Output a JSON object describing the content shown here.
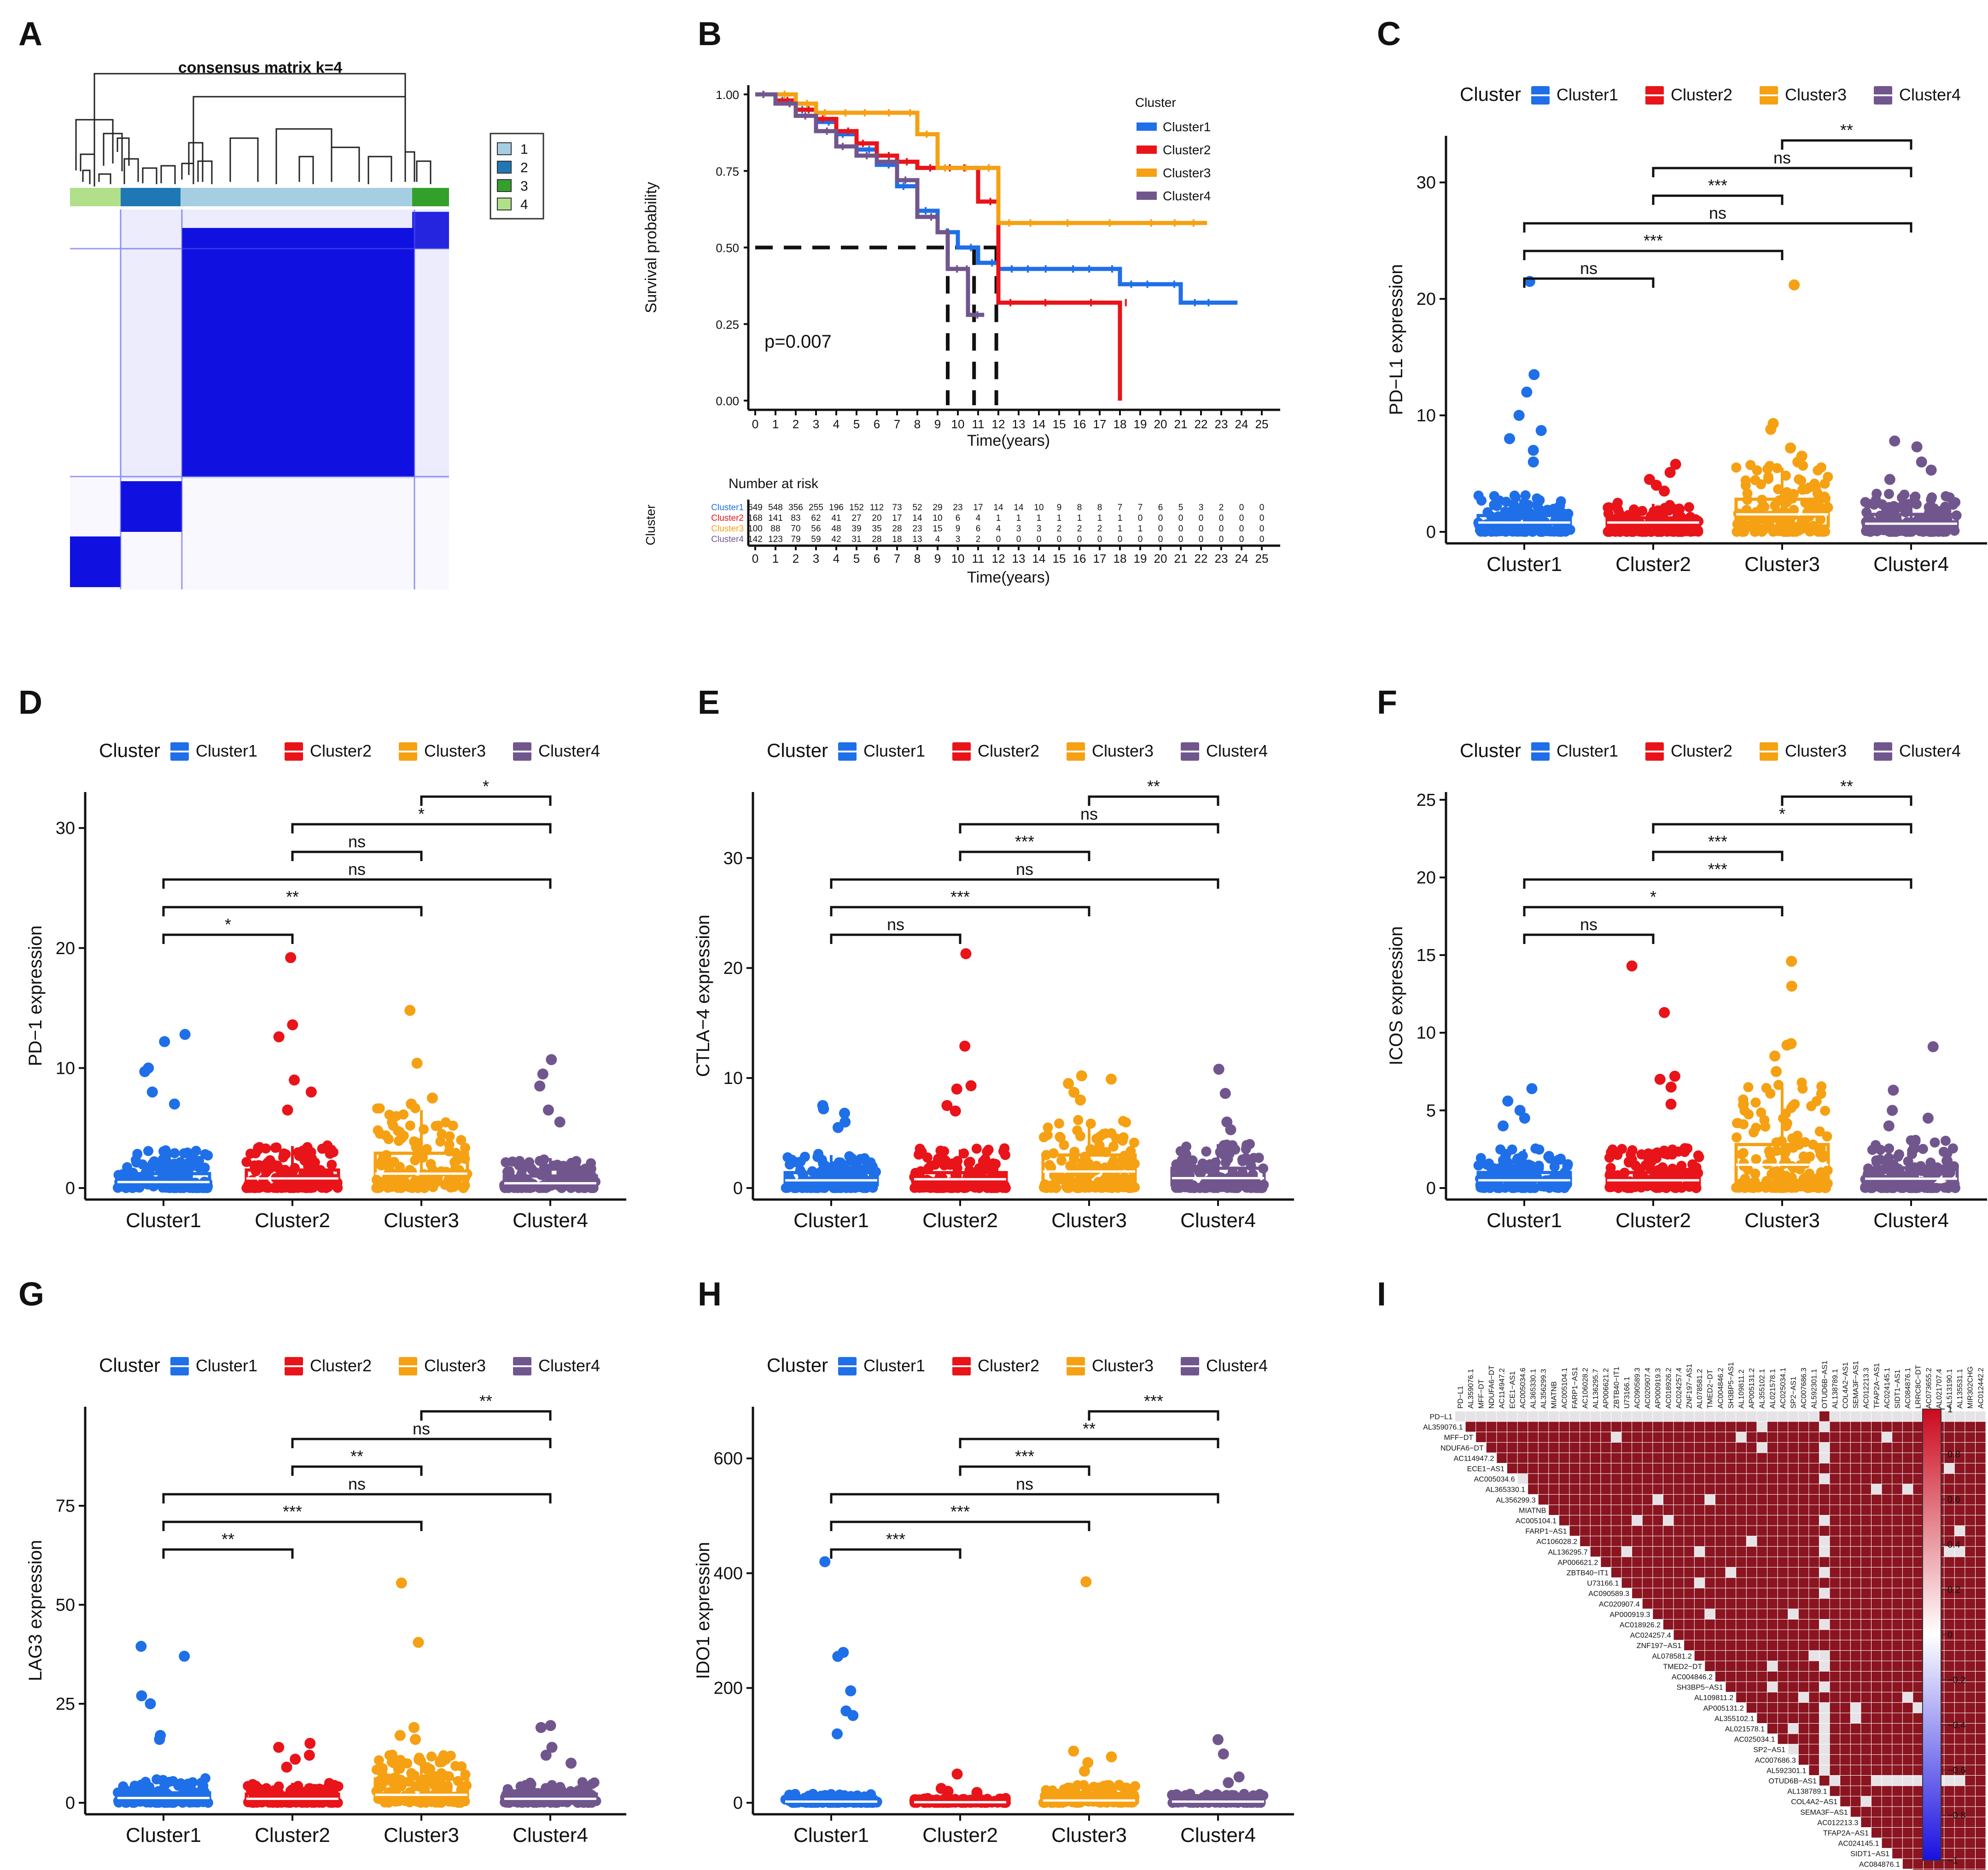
{
  "palette": {
    "Cluster1": "#1f6fe8",
    "Cluster2": "#e8141a",
    "Cluster3": "#f5a113",
    "Cluster4": "#71568e"
  },
  "panels": {
    "A": {
      "label": "A",
      "title": "consensus matrix k=4",
      "legend": [
        "1",
        "2",
        "3",
        "4"
      ],
      "legend_colors": [
        "#a6cee3",
        "#1f78b4",
        "#33a02c",
        "#b2df8a"
      ],
      "block_fill": "#1010e0"
    },
    "B": {
      "label": "B"
    },
    "C": {
      "label": "C"
    },
    "D": {
      "label": "D"
    },
    "E": {
      "label": "E"
    },
    "F": {
      "label": "F"
    },
    "G": {
      "label": "G"
    },
    "H": {
      "label": "H"
    },
    "I": {
      "label": "I"
    }
  },
  "chart_data": [
    {
      "panel": "B",
      "type": "line",
      "title": "",
      "xlabel": "Time(years)",
      "ylabel": "Survival probability",
      "xlim": [
        0,
        25
      ],
      "ylim": [
        0,
        1
      ],
      "yticks": [
        "0.00",
        "0.25",
        "0.50",
        "0.75",
        "1.00"
      ],
      "xticks": [
        "0",
        "1",
        "2",
        "3",
        "4",
        "5",
        "6",
        "7",
        "8",
        "9",
        "10",
        "11",
        "12",
        "13",
        "14",
        "15",
        "16",
        "17",
        "18",
        "19",
        "20",
        "21",
        "22",
        "23",
        "24",
        "25"
      ],
      "annotation": "p=0.007",
      "legend_title": "Cluster",
      "median_line": 0.5,
      "median_times": [
        9.5,
        10.8,
        11.9
      ],
      "series": [
        {
          "name": "Cluster1",
          "color": "#1f6fe8",
          "x": [
            0,
            1,
            2,
            3,
            4,
            5,
            6,
            7,
            8,
            9,
            10,
            11,
            12,
            13,
            14,
            15,
            16,
            17,
            18,
            19,
            20,
            21,
            22,
            23.8
          ],
          "y": [
            1.0,
            0.98,
            0.95,
            0.91,
            0.87,
            0.82,
            0.77,
            0.7,
            0.62,
            0.55,
            0.5,
            0.45,
            0.43,
            0.43,
            0.43,
            0.43,
            0.43,
            0.43,
            0.38,
            0.38,
            0.38,
            0.32,
            0.32,
            0.32
          ]
        },
        {
          "name": "Cluster2",
          "color": "#e8141a",
          "x": [
            0,
            1,
            2,
            3,
            4,
            5,
            6,
            7,
            8,
            9,
            10,
            11,
            12,
            14,
            16,
            17.9,
            18
          ],
          "y": [
            1.0,
            0.98,
            0.95,
            0.92,
            0.88,
            0.84,
            0.8,
            0.78,
            0.76,
            0.76,
            0.76,
            0.65,
            0.32,
            0.32,
            0.32,
            0.32,
            0.0
          ]
        },
        {
          "name": "Cluster3",
          "color": "#f5a113",
          "x": [
            0,
            1,
            2,
            3,
            4,
            5,
            6,
            7,
            8,
            9,
            10,
            11,
            12,
            13,
            15,
            17,
            19,
            20,
            21,
            22.3
          ],
          "y": [
            1.0,
            1.0,
            0.97,
            0.94,
            0.94,
            0.94,
            0.94,
            0.94,
            0.87,
            0.76,
            0.76,
            0.76,
            0.58,
            0.58,
            0.58,
            0.58,
            0.58,
            0.58,
            0.58,
            0.58
          ]
        },
        {
          "name": "Cluster4",
          "color": "#71568e",
          "x": [
            0,
            1,
            2,
            3,
            4,
            5,
            6,
            7,
            8,
            9,
            9.5,
            10,
            10.5,
            11.3
          ],
          "y": [
            1.0,
            0.97,
            0.93,
            0.88,
            0.83,
            0.8,
            0.78,
            0.72,
            0.6,
            0.55,
            0.43,
            0.43,
            0.28,
            0.28
          ]
        }
      ],
      "risk_table": {
        "title": "Number at risk",
        "ylabel": "Cluster",
        "rows": [
          {
            "name": "Cluster1",
            "values": [
              "649",
              "548",
              "356",
              "255",
              "196",
              "152",
              "112",
              "73",
              "52",
              "29",
              "23",
              "17",
              "14",
              "14",
              "10",
              "9",
              "8",
              "8",
              "7",
              "7",
              "6",
              "5",
              "3",
              "2",
              "0",
              "0"
            ]
          },
          {
            "name": "Cluster2",
            "values": [
              "168",
              "141",
              "83",
              "62",
              "41",
              "27",
              "20",
              "17",
              "14",
              "10",
              "6",
              "4",
              "1",
              "1",
              "1",
              "1",
              "1",
              "1",
              "1",
              "0",
              "0",
              "0",
              "0",
              "0",
              "0",
              "0"
            ]
          },
          {
            "name": "Cluster3",
            "values": [
              "100",
              "88",
              "70",
              "56",
              "48",
              "39",
              "35",
              "28",
              "23",
              "15",
              "9",
              "6",
              "4",
              "3",
              "3",
              "2",
              "2",
              "2",
              "1",
              "1",
              "0",
              "0",
              "0",
              "0",
              "0",
              "0"
            ]
          },
          {
            "name": "Cluster4",
            "values": [
              "142",
              "123",
              "79",
              "59",
              "42",
              "31",
              "28",
              "18",
              "13",
              "4",
              "3",
              "2",
              "0",
              "0",
              "0",
              "0",
              "0",
              "0",
              "0",
              "0",
              "0",
              "0",
              "0",
              "0",
              "0",
              "0"
            ]
          }
        ]
      }
    },
    {
      "panel": "C",
      "type": "box",
      "ylabel": "PD−L1 expression",
      "ylim": [
        0,
        34
      ],
      "yticks": [
        0,
        10,
        20,
        30
      ],
      "legend_title": "Cluster",
      "categories": [
        "Cluster1",
        "Cluster2",
        "Cluster3",
        "Cluster4"
      ],
      "boxes": [
        {
          "q1": 0.3,
          "median": 0.8,
          "q3": 1.4,
          "whisker_hi": 3.0,
          "outliers": [
            21.5,
            13.5,
            12,
            10,
            8.7,
            8,
            7,
            6
          ]
        },
        {
          "q1": 0.4,
          "median": 0.8,
          "q3": 1.2,
          "whisker_hi": 2.4,
          "outliers": [
            5.8,
            5.1,
            4.5,
            4,
            3.5
          ]
        },
        {
          "q1": 0.5,
          "median": 1.5,
          "q3": 2.8,
          "whisker_hi": 5.5,
          "outliers": [
            21.2,
            9.3,
            8.8,
            7.2,
            6.5,
            6
          ]
        },
        {
          "q1": 0.3,
          "median": 0.7,
          "q3": 1.5,
          "whisker_hi": 3.2,
          "outliers": [
            7.8,
            7.3,
            6,
            5.3,
            4.5
          ]
        }
      ],
      "comparisons": [
        {
          "a": 1,
          "b": 2,
          "label": "ns"
        },
        {
          "a": 1,
          "b": 3,
          "label": "***"
        },
        {
          "a": 1,
          "b": 4,
          "label": "ns"
        },
        {
          "a": 2,
          "b": 3,
          "label": "***"
        },
        {
          "a": 2,
          "b": 4,
          "label": "ns"
        },
        {
          "a": 3,
          "b": 4,
          "label": "**"
        }
      ]
    },
    {
      "panel": "D",
      "type": "box",
      "ylabel": "PD−1 expression",
      "ylim": [
        0,
        33
      ],
      "yticks": [
        0,
        10,
        20,
        30
      ],
      "legend_title": "Cluster",
      "categories": [
        "Cluster1",
        "Cluster2",
        "Cluster3",
        "Cluster4"
      ],
      "boxes": [
        {
          "q1": 0.2,
          "median": 0.5,
          "q3": 1.2,
          "whisker_hi": 3.0,
          "outliers": [
            12.8,
            12.2,
            10,
            9.7,
            8,
            7
          ]
        },
        {
          "q1": 0.2,
          "median": 0.8,
          "q3": 1.5,
          "whisker_hi": 3.5,
          "outliers": [
            19.2,
            13.6,
            12.6,
            9,
            8,
            6.5
          ]
        },
        {
          "q1": 0.3,
          "median": 1.2,
          "q3": 2.9,
          "whisker_hi": 6.5,
          "outliers": [
            14.8,
            10.4,
            7.5,
            7
          ]
        },
        {
          "q1": 0.1,
          "median": 0.4,
          "q3": 1.0,
          "whisker_hi": 2.5,
          "outliers": [
            10.7,
            9.5,
            8.5,
            6.5,
            5.5
          ]
        }
      ],
      "comparisons": [
        {
          "a": 1,
          "b": 2,
          "label": "*"
        },
        {
          "a": 1,
          "b": 3,
          "label": "**"
        },
        {
          "a": 1,
          "b": 4,
          "label": "ns"
        },
        {
          "a": 2,
          "b": 3,
          "label": "ns"
        },
        {
          "a": 2,
          "b": 4,
          "label": "*"
        },
        {
          "a": 3,
          "b": 4,
          "label": "*"
        }
      ]
    },
    {
      "panel": "E",
      "type": "box",
      "ylabel": "CTLA−4 expression",
      "ylim": [
        0,
        36
      ],
      "yticks": [
        0,
        10,
        20,
        30
      ],
      "legend_title": "Cluster",
      "categories": [
        "Cluster1",
        "Cluster2",
        "Cluster3",
        "Cluster4"
      ],
      "boxes": [
        {
          "q1": 0.3,
          "median": 0.7,
          "q3": 1.4,
          "whisker_hi": 3.0,
          "outliers": [
            7.5,
            7.2,
            6.8,
            6,
            5.5
          ]
        },
        {
          "q1": 0.3,
          "median": 0.8,
          "q3": 1.4,
          "whisker_hi": 3.5,
          "outliers": [
            21.3,
            12.9,
            9.3,
            9,
            7.5,
            7
          ]
        },
        {
          "q1": 0.5,
          "median": 1.5,
          "q3": 3.0,
          "whisker_hi": 6.0,
          "outliers": [
            10.2,
            9.9,
            9.5,
            8.7,
            8
          ]
        },
        {
          "q1": 0.3,
          "median": 0.9,
          "q3": 1.8,
          "whisker_hi": 4.0,
          "outliers": [
            10.8,
            8.6,
            6,
            5.3
          ]
        }
      ],
      "comparisons": [
        {
          "a": 1,
          "b": 2,
          "label": "ns"
        },
        {
          "a": 1,
          "b": 3,
          "label": "***"
        },
        {
          "a": 1,
          "b": 4,
          "label": "ns"
        },
        {
          "a": 2,
          "b": 3,
          "label": "***"
        },
        {
          "a": 2,
          "b": 4,
          "label": "ns"
        },
        {
          "a": 3,
          "b": 4,
          "label": "**"
        }
      ]
    },
    {
      "panel": "F",
      "type": "box",
      "ylabel": "ICOS expression",
      "ylim": [
        0,
        25.5
      ],
      "yticks": [
        0,
        5,
        10,
        15,
        20,
        25
      ],
      "legend_title": "Cluster",
      "categories": [
        "Cluster1",
        "Cluster2",
        "Cluster3",
        "Cluster4"
      ],
      "boxes": [
        {
          "q1": 0.2,
          "median": 0.5,
          "q3": 1.0,
          "whisker_hi": 2.5,
          "outliers": [
            6.4,
            5.6,
            5,
            4.5,
            4
          ]
        },
        {
          "q1": 0.2,
          "median": 0.5,
          "q3": 1.0,
          "whisker_hi": 2.5,
          "outliers": [
            14.3,
            11.3,
            7.2,
            7,
            6.5,
            5.4
          ]
        },
        {
          "q1": 0.3,
          "median": 1.5,
          "q3": 2.8,
          "whisker_hi": 6.5,
          "outliers": [
            14.6,
            13.0,
            9.3,
            9.2,
            8.5,
            7.5
          ]
        },
        {
          "q1": 0.2,
          "median": 0.6,
          "q3": 1.3,
          "whisker_hi": 3.0,
          "outliers": [
            9.1,
            6.3,
            5,
            4.5,
            4
          ]
        }
      ],
      "comparisons": [
        {
          "a": 1,
          "b": 2,
          "label": "ns"
        },
        {
          "a": 1,
          "b": 3,
          "label": "*"
        },
        {
          "a": 1,
          "b": 4,
          "label": "***"
        },
        {
          "a": 2,
          "b": 3,
          "label": "***"
        },
        {
          "a": 2,
          "b": 4,
          "label": "*"
        },
        {
          "a": 3,
          "b": 4,
          "label": "**"
        }
      ]
    },
    {
      "panel": "G",
      "type": "box",
      "ylabel": "LAG3 expression",
      "ylim": [
        0,
        100
      ],
      "yticks": [
        0,
        25,
        50,
        75
      ],
      "legend_title": "Cluster",
      "categories": [
        "Cluster1",
        "Cluster2",
        "Cluster3",
        "Cluster4"
      ],
      "boxes": [
        {
          "q1": 0.5,
          "median": 1.2,
          "q3": 2.5,
          "whisker_hi": 6.0,
          "outliers": [
            39.5,
            37,
            27,
            25,
            17,
            16
          ]
        },
        {
          "q1": 0.5,
          "median": 1.0,
          "q3": 2.2,
          "whisker_hi": 5.0,
          "outliers": [
            15,
            14,
            12,
            11,
            9
          ]
        },
        {
          "q1": 1.0,
          "median": 2.0,
          "q3": 6.0,
          "whisker_hi": 12.0,
          "outliers": [
            55.5,
            40.5,
            19,
            17,
            16
          ]
        },
        {
          "q1": 0.3,
          "median": 1.0,
          "q3": 2.2,
          "whisker_hi": 5.0,
          "outliers": [
            19.5,
            19,
            14,
            12,
            10
          ]
        }
      ],
      "comparisons": [
        {
          "a": 1,
          "b": 2,
          "label": "**"
        },
        {
          "a": 1,
          "b": 3,
          "label": "***"
        },
        {
          "a": 1,
          "b": 4,
          "label": "ns"
        },
        {
          "a": 2,
          "b": 3,
          "label": "**"
        },
        {
          "a": 2,
          "b": 4,
          "label": "ns"
        },
        {
          "a": 3,
          "b": 4,
          "label": "**"
        }
      ]
    },
    {
      "panel": "H",
      "type": "box",
      "ylabel": "IDO1 expression",
      "ylim": [
        0,
        690
      ],
      "yticks": [
        0,
        200,
        400,
        600
      ],
      "legend_title": "Cluster",
      "categories": [
        "Cluster1",
        "Cluster2",
        "Cluster3",
        "Cluster4"
      ],
      "boxes": [
        {
          "q1": 1,
          "median": 2,
          "q3": 5,
          "whisker_hi": 15,
          "outliers": [
            420,
            262,
            255,
            195,
            160,
            152,
            120
          ]
        },
        {
          "q1": 0.5,
          "median": 1,
          "q3": 3,
          "whisker_hi": 8,
          "outliers": [
            50,
            25,
            20,
            18
          ]
        },
        {
          "q1": 1,
          "median": 4,
          "q3": 12,
          "whisker_hi": 30,
          "outliers": [
            385,
            90,
            80,
            70,
            55
          ]
        },
        {
          "q1": 0.5,
          "median": 2,
          "q3": 6,
          "whisker_hi": 15,
          "outliers": [
            110,
            85,
            45,
            35
          ]
        }
      ],
      "comparisons": [
        {
          "a": 1,
          "b": 2,
          "label": "***"
        },
        {
          "a": 1,
          "b": 3,
          "label": "***"
        },
        {
          "a": 1,
          "b": 4,
          "label": "ns"
        },
        {
          "a": 2,
          "b": 3,
          "label": "***"
        },
        {
          "a": 2,
          "b": 4,
          "label": "**"
        },
        {
          "a": 3,
          "b": 4,
          "label": "***"
        }
      ]
    },
    {
      "panel": "I",
      "type": "heatmap",
      "labels": [
        "PD−L1",
        "AL359076.1",
        "MFF−DT",
        "NDUFA6−DT",
        "AC114947.2",
        "ECE1−AS1",
        "AC005034.6",
        "AL365330.1",
        "AL356299.3",
        "MIATNB",
        "AC005104.1",
        "FARP1−AS1",
        "AC106028.2",
        "AL136295.7",
        "AP006621.2",
        "ZBTB40−IT1",
        "U73166.1",
        "AC090589.3",
        "AC020907.4",
        "AP000919.3",
        "AC018926.2",
        "AC024257.4",
        "ZNF197−AS1",
        "AL078581.2",
        "TMED2−DT",
        "AC004846.2",
        "SH3BP5−AS1",
        "AL109811.2",
        "AP005131.2",
        "AL355102.1",
        "AL021578.1",
        "AC025034.1",
        "SP2−AS1",
        "AC007686.3",
        "AL592301.1",
        "OTUD6B−AS1",
        "AL138789.1",
        "COL4A2−AS1",
        "SEMA3F−AS1",
        "AC012213.3",
        "TFAP2A−AS1",
        "AC024145.1",
        "SIDT1−AS1",
        "AC084876.1",
        "LRRC8C−DT",
        "AC073655.2",
        "AL021707.4",
        "AL513190.1",
        "AL135531.1",
        "MIR302CHG",
        "AC012442.2"
      ],
      "colorbar_ticks": [
        "1",
        "0.8",
        "0.6",
        "0.4",
        "0.2",
        "0",
        "−0.2",
        "−0.4",
        "−0.6",
        "−0.8",
        "−1"
      ],
      "colors": {
        "high": "#cc0a1e",
        "mid": "#ffffff",
        "low": "#1a10e0",
        "cell_pos": "#8a1420",
        "cell_weak": "#e6e3e6"
      }
    }
  ]
}
